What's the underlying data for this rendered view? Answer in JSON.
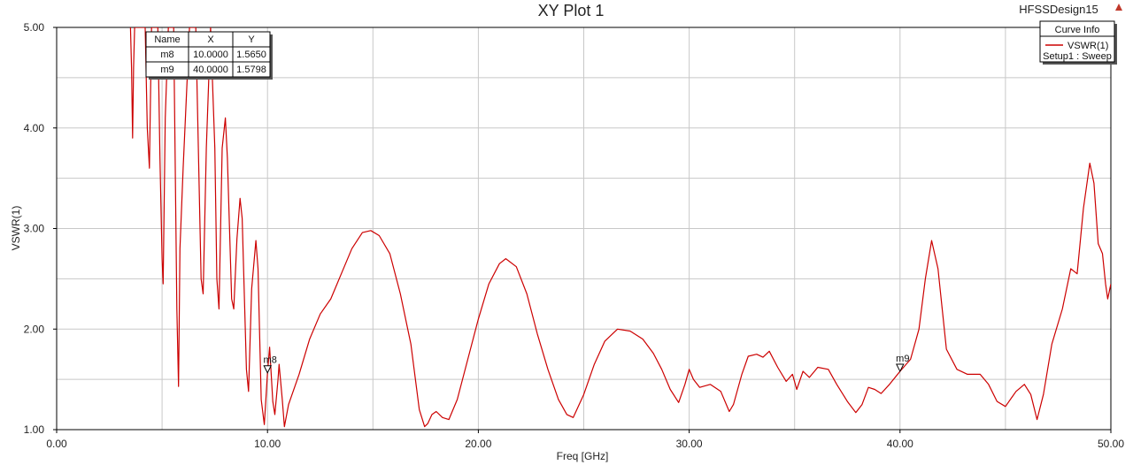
{
  "design_name": "HFSSDesign15",
  "chart_data": {
    "type": "line",
    "title": "XY Plot 1",
    "xlabel": "Freq [GHz]",
    "ylabel": "VSWR(1)",
    "xlim": [
      0,
      50
    ],
    "ylim": [
      1,
      5
    ],
    "x_ticks": [
      "0.00",
      "10.00",
      "20.00",
      "30.00",
      "40.00",
      "50.00"
    ],
    "y_ticks": [
      "1.00",
      "2.00",
      "3.00",
      "4.00",
      "5.00"
    ],
    "grid": true,
    "legend": {
      "title": "Curve Info",
      "placement": "top-right",
      "entries": [
        {
          "label": "VSWR(1)",
          "sublabel": "Setup1 : Sweep",
          "color": "#cc0000"
        }
      ]
    },
    "marker_table": {
      "headers": [
        "Name",
        "X",
        "Y"
      ],
      "rows": [
        [
          "m8",
          "10.0000",
          "1.5650"
        ],
        [
          "m9",
          "40.0000",
          "1.5798"
        ]
      ]
    },
    "markers": [
      {
        "name": "m8",
        "x": 10.0,
        "y": 1.565
      },
      {
        "name": "m9",
        "x": 40.0,
        "y": 1.5798
      }
    ],
    "series": [
      {
        "name": "VSWR(1)",
        "color": "#cc0000",
        "points": [
          [
            3.5,
            5.0
          ],
          [
            3.55,
            4.6
          ],
          [
            3.6,
            3.9
          ],
          [
            3.65,
            4.6
          ],
          [
            3.7,
            5.0
          ],
          [
            4.2,
            5.0
          ],
          [
            4.3,
            4.0
          ],
          [
            4.4,
            3.6
          ],
          [
            4.5,
            5.0
          ],
          [
            4.8,
            5.0
          ],
          [
            4.9,
            3.7
          ],
          [
            5.0,
            2.7
          ],
          [
            5.05,
            2.45
          ],
          [
            5.15,
            4.1
          ],
          [
            5.3,
            5.0
          ],
          [
            5.55,
            5.0
          ],
          [
            5.7,
            2.2
          ],
          [
            5.78,
            1.43
          ],
          [
            5.85,
            2.8
          ],
          [
            6.0,
            3.6
          ],
          [
            6.3,
            5.0
          ],
          [
            6.6,
            5.0
          ],
          [
            6.85,
            2.5
          ],
          [
            6.95,
            2.35
          ],
          [
            7.1,
            3.8
          ],
          [
            7.3,
            5.0
          ],
          [
            7.5,
            3.8
          ],
          [
            7.6,
            2.5
          ],
          [
            7.7,
            2.2
          ],
          [
            7.85,
            3.8
          ],
          [
            8.0,
            4.1
          ],
          [
            8.1,
            3.7
          ],
          [
            8.3,
            2.3
          ],
          [
            8.4,
            2.2
          ],
          [
            8.55,
            2.9
          ],
          [
            8.7,
            3.3
          ],
          [
            8.8,
            3.1
          ],
          [
            9.0,
            1.6
          ],
          [
            9.1,
            1.38
          ],
          [
            9.25,
            2.4
          ],
          [
            9.45,
            2.88
          ],
          [
            9.55,
            2.6
          ],
          [
            9.7,
            1.3
          ],
          [
            9.85,
            1.05
          ],
          [
            10.0,
            1.565
          ],
          [
            10.1,
            1.82
          ],
          [
            10.25,
            1.28
          ],
          [
            10.35,
            1.15
          ],
          [
            10.5,
            1.5
          ],
          [
            10.55,
            1.65
          ],
          [
            10.7,
            1.3
          ],
          [
            10.8,
            1.03
          ],
          [
            11.0,
            1.25
          ],
          [
            11.5,
            1.55
          ],
          [
            12.0,
            1.9
          ],
          [
            12.5,
            2.15
          ],
          [
            13.0,
            2.3
          ],
          [
            13.5,
            2.55
          ],
          [
            14.0,
            2.8
          ],
          [
            14.5,
            2.96
          ],
          [
            14.9,
            2.98
          ],
          [
            15.3,
            2.93
          ],
          [
            15.8,
            2.75
          ],
          [
            16.3,
            2.35
          ],
          [
            16.8,
            1.85
          ],
          [
            17.2,
            1.2
          ],
          [
            17.45,
            1.03
          ],
          [
            17.6,
            1.06
          ],
          [
            17.8,
            1.15
          ],
          [
            18.0,
            1.18
          ],
          [
            18.3,
            1.12
          ],
          [
            18.6,
            1.1
          ],
          [
            19.0,
            1.3
          ],
          [
            19.5,
            1.7
          ],
          [
            20.0,
            2.1
          ],
          [
            20.5,
            2.45
          ],
          [
            21.0,
            2.65
          ],
          [
            21.3,
            2.7
          ],
          [
            21.8,
            2.62
          ],
          [
            22.3,
            2.35
          ],
          [
            22.8,
            1.95
          ],
          [
            23.3,
            1.6
          ],
          [
            23.8,
            1.3
          ],
          [
            24.2,
            1.15
          ],
          [
            24.5,
            1.12
          ],
          [
            25.0,
            1.35
          ],
          [
            25.5,
            1.65
          ],
          [
            26.0,
            1.88
          ],
          [
            26.6,
            2.0
          ],
          [
            27.2,
            1.98
          ],
          [
            27.8,
            1.9
          ],
          [
            28.3,
            1.76
          ],
          [
            28.7,
            1.6
          ],
          [
            29.1,
            1.4
          ],
          [
            29.5,
            1.27
          ],
          [
            29.8,
            1.45
          ],
          [
            30.0,
            1.6
          ],
          [
            30.2,
            1.5
          ],
          [
            30.5,
            1.42
          ],
          [
            31.0,
            1.45
          ],
          [
            31.5,
            1.38
          ],
          [
            31.9,
            1.18
          ],
          [
            32.1,
            1.25
          ],
          [
            32.5,
            1.55
          ],
          [
            32.8,
            1.73
          ],
          [
            33.2,
            1.75
          ],
          [
            33.5,
            1.72
          ],
          [
            33.8,
            1.78
          ],
          [
            34.2,
            1.62
          ],
          [
            34.6,
            1.48
          ],
          [
            34.9,
            1.55
          ],
          [
            35.1,
            1.4
          ],
          [
            35.4,
            1.58
          ],
          [
            35.7,
            1.52
          ],
          [
            36.1,
            1.62
          ],
          [
            36.6,
            1.6
          ],
          [
            37.0,
            1.45
          ],
          [
            37.5,
            1.28
          ],
          [
            37.9,
            1.17
          ],
          [
            38.2,
            1.25
          ],
          [
            38.5,
            1.42
          ],
          [
            38.8,
            1.4
          ],
          [
            39.1,
            1.36
          ],
          [
            39.5,
            1.45
          ],
          [
            40.0,
            1.5798
          ],
          [
            40.5,
            1.7
          ],
          [
            40.9,
            2.0
          ],
          [
            41.2,
            2.5
          ],
          [
            41.5,
            2.88
          ],
          [
            41.8,
            2.6
          ],
          [
            42.2,
            1.8
          ],
          [
            42.7,
            1.6
          ],
          [
            43.2,
            1.55
          ],
          [
            43.8,
            1.55
          ],
          [
            44.2,
            1.45
          ],
          [
            44.6,
            1.28
          ],
          [
            45.0,
            1.23
          ],
          [
            45.5,
            1.38
          ],
          [
            45.9,
            1.45
          ],
          [
            46.2,
            1.35
          ],
          [
            46.5,
            1.1
          ],
          [
            46.8,
            1.35
          ],
          [
            47.2,
            1.85
          ],
          [
            47.7,
            2.2
          ],
          [
            48.1,
            2.6
          ],
          [
            48.4,
            2.55
          ],
          [
            48.7,
            3.2
          ],
          [
            49.0,
            3.65
          ],
          [
            49.2,
            3.45
          ],
          [
            49.4,
            2.85
          ],
          [
            49.6,
            2.75
          ],
          [
            49.75,
            2.45
          ],
          [
            49.85,
            2.3
          ],
          [
            50.0,
            2.45
          ]
        ]
      }
    ]
  }
}
